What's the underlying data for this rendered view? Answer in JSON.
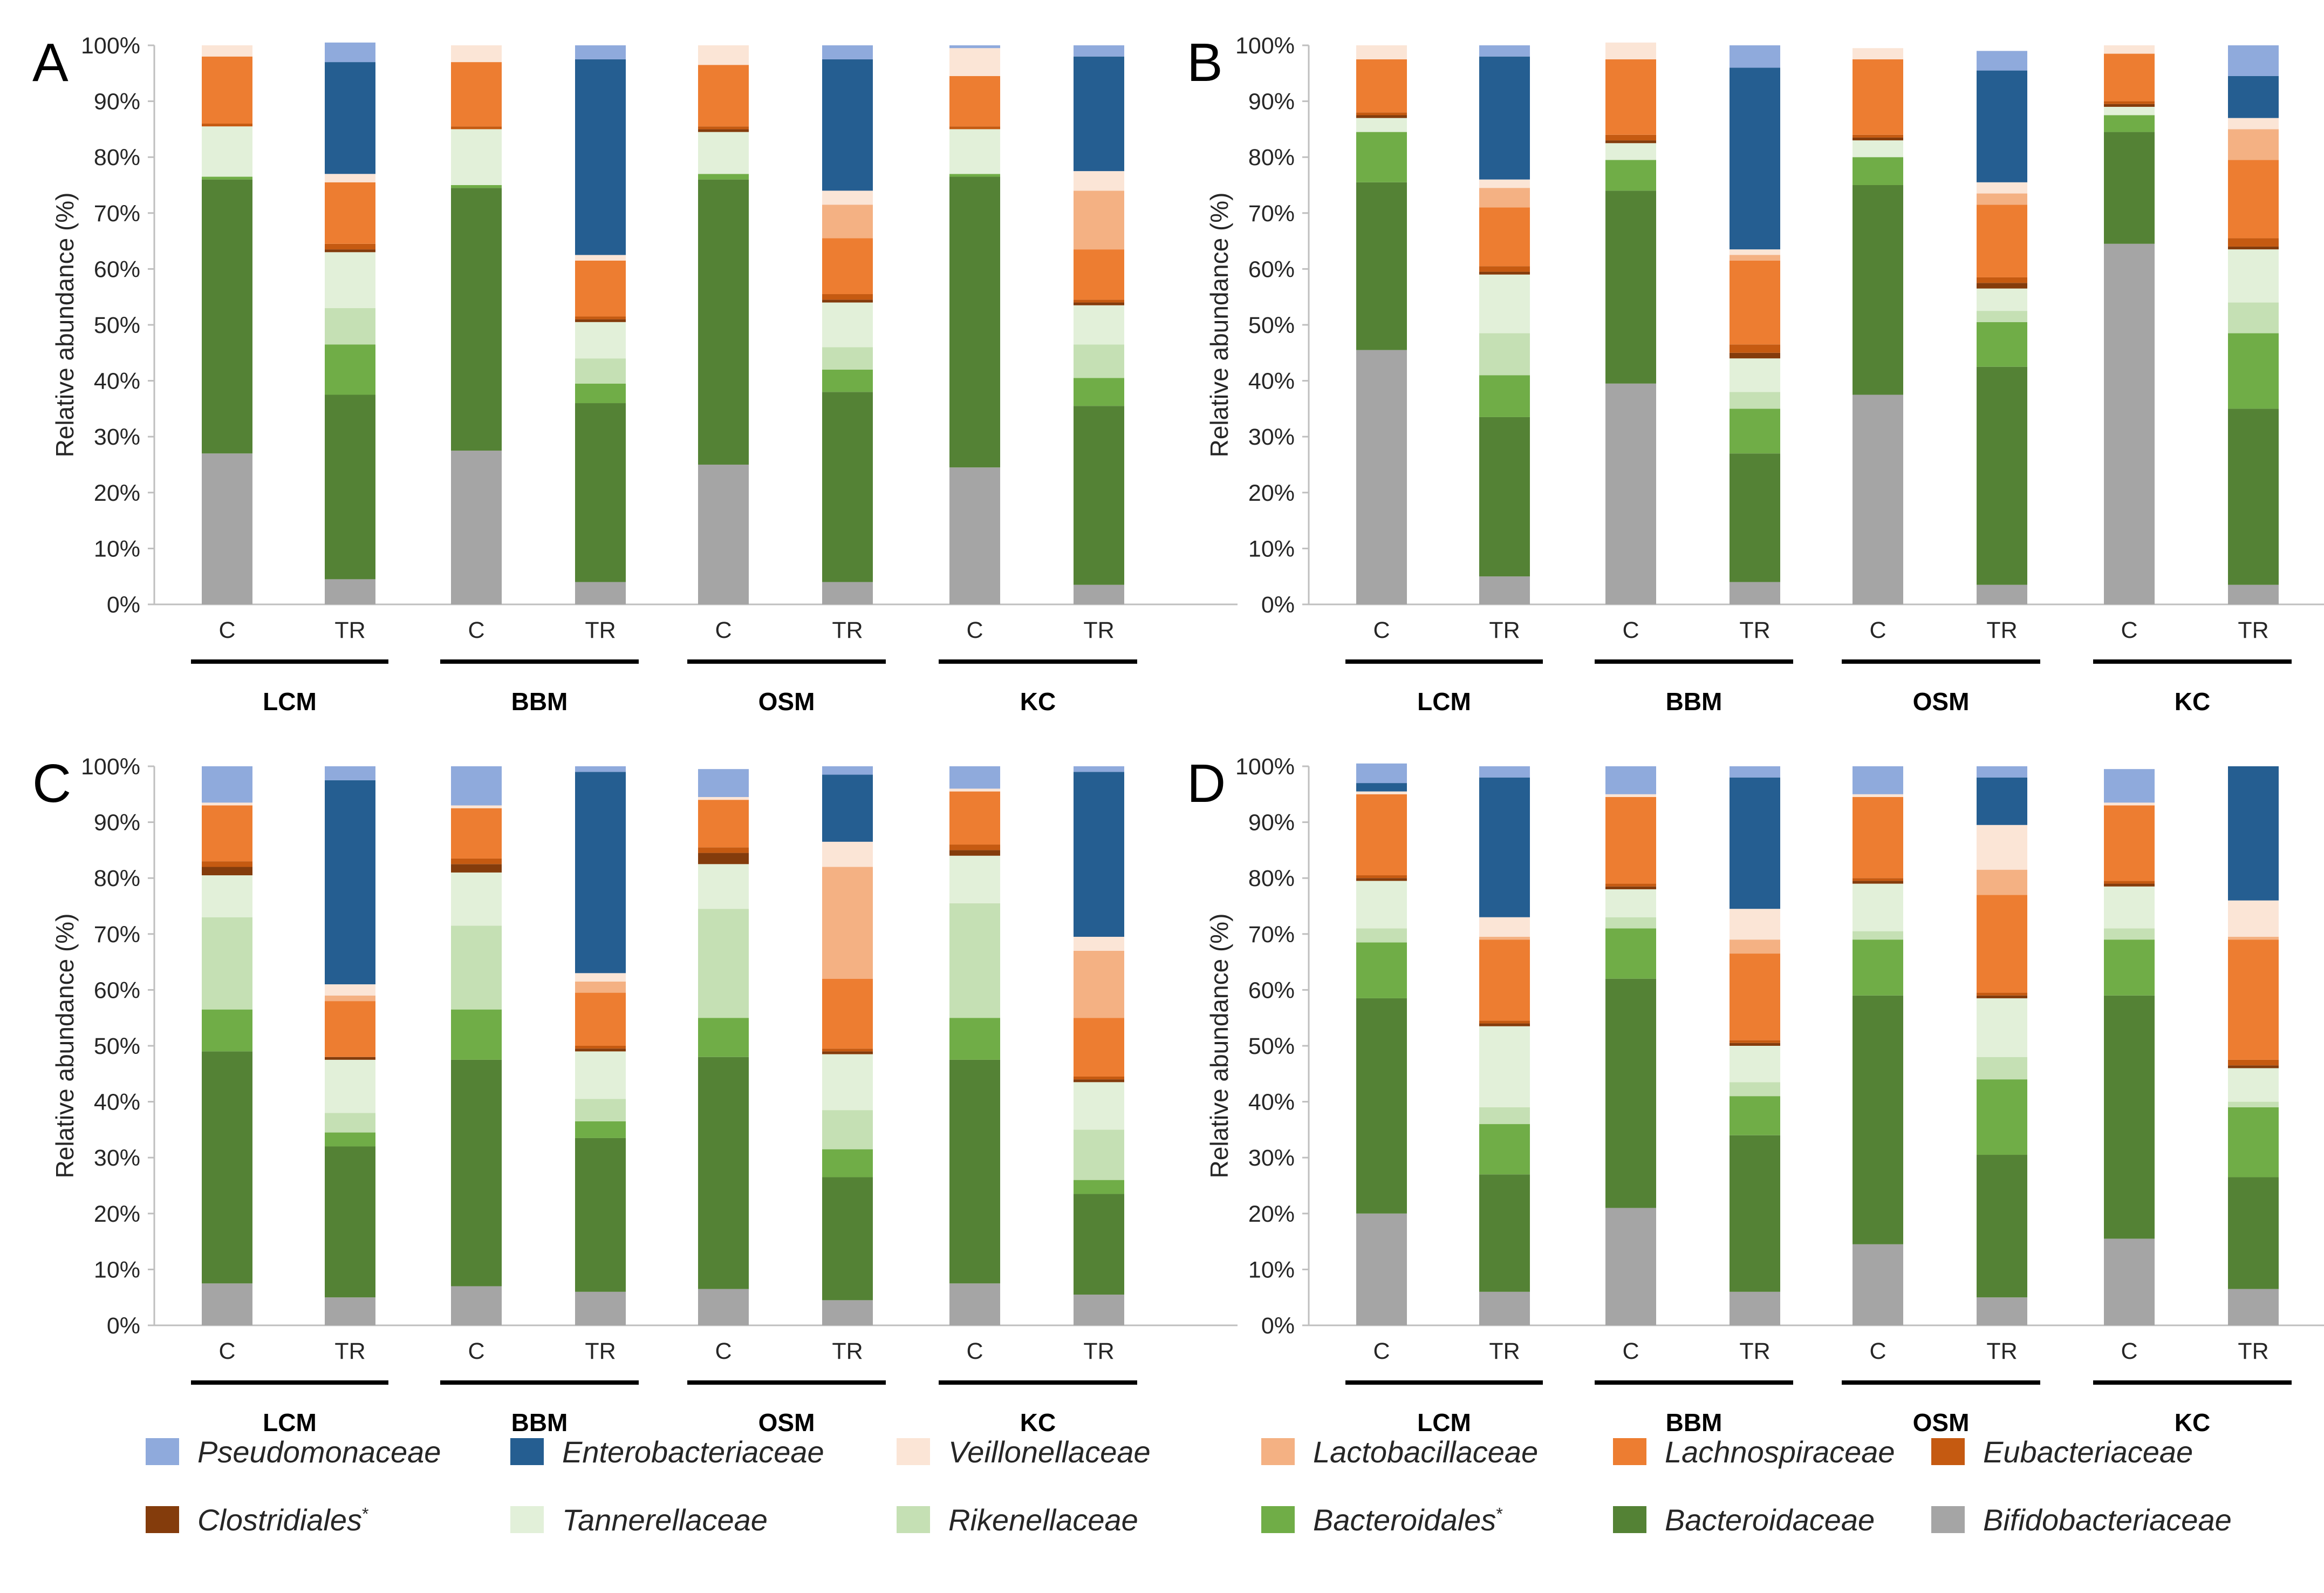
{
  "figure": {
    "ytick_labels": [
      "0%",
      "10%",
      "20%",
      "30%",
      "40%",
      "50%",
      "60%",
      "70%",
      "80%",
      "90%",
      "100%"
    ],
    "ylabel": "Relative abundance (%)",
    "groups": [
      "LCM",
      "BBM",
      "OSM",
      "KC"
    ],
    "conditions": [
      "C",
      "TR"
    ],
    "families": [
      "Bifidobacteriaceae",
      "Bacteroidaceae",
      "Bacteroidales",
      "Rikenellaceae",
      "Tannerellaceae",
      "Clostridiales",
      "Eubacteriaceae",
      "Lachnospiraceae",
      "Lactobacillaceae",
      "Veillonellaceae",
      "Enterobacteriaceae",
      "Pseudomonaceae"
    ],
    "colors": [
      "#a5a5a5",
      "#548235",
      "#70ad47",
      "#c5e0b4",
      "#e2f0d9",
      "#843c0c",
      "#c55a11",
      "#ed7d31",
      "#f4b183",
      "#fbe5d6",
      "#255e91",
      "#8faadc"
    ]
  },
  "legend": [
    {
      "label": "Pseudomonaceae",
      "color": "#8faadc",
      "asterisk": ""
    },
    {
      "label": "Enterobacteriaceae",
      "color": "#255e91",
      "asterisk": ""
    },
    {
      "label": "Veillonellaceae",
      "color": "#fbe5d6",
      "asterisk": ""
    },
    {
      "label": "Lactobacillaceae",
      "color": "#f4b183",
      "asterisk": ""
    },
    {
      "label": "Lachnospiraceae",
      "color": "#ed7d31",
      "asterisk": ""
    },
    {
      "label": "Eubacteriaceae",
      "color": "#c55a11",
      "asterisk": ""
    },
    {
      "label": "Clostridiales",
      "color": "#843c0c",
      "asterisk": "*"
    },
    {
      "label": "Tannerellaceae",
      "color": "#e2f0d9",
      "asterisk": ""
    },
    {
      "label": "Rikenellaceae",
      "color": "#c5e0b4",
      "asterisk": ""
    },
    {
      "label": "Bacteroidales",
      "color": "#70ad47",
      "asterisk": "*"
    },
    {
      "label": "Bacteroidaceae",
      "color": "#548235",
      "asterisk": ""
    },
    {
      "label": "Bifidobacteriaceae",
      "color": "#a5a5a5",
      "asterisk": ""
    }
  ],
  "chart_data": [
    {
      "type": "bar",
      "stacked": true,
      "panel": "A",
      "ylabel": "Relative abundance (%)",
      "ylim": [
        0,
        100
      ],
      "categories": [
        "C",
        "TR",
        "C",
        "TR",
        "C",
        "TR",
        "C",
        "TR"
      ],
      "groups": [
        "LCM",
        "BBM",
        "OSM",
        "KC"
      ],
      "bars": [
        [
          27,
          49,
          0.5,
          0,
          9,
          0,
          0.5,
          12,
          0,
          2,
          0,
          0
        ],
        [
          4.5,
          33,
          9,
          6.5,
          10,
          0.5,
          1,
          11,
          0,
          1.5,
          20,
          3.5
        ],
        [
          27.5,
          47,
          0.5,
          0,
          10,
          0,
          0.5,
          11.5,
          0,
          3,
          0,
          0
        ],
        [
          4,
          32,
          3.5,
          4.5,
          6.5,
          0.5,
          0.5,
          10,
          0,
          1,
          35,
          2.5
        ],
        [
          25,
          51,
          1,
          0,
          7.5,
          0.5,
          0.5,
          11,
          0,
          3.5,
          0,
          0
        ],
        [
          4,
          34,
          4,
          4,
          8,
          0.5,
          1,
          10,
          6,
          2.5,
          23.5,
          2.5
        ],
        [
          24.5,
          52,
          0.5,
          0,
          8,
          0,
          0.5,
          9,
          0,
          5,
          0,
          0.5
        ],
        [
          3.5,
          32,
          5,
          6,
          7,
          0.5,
          0.5,
          9,
          10.5,
          3.5,
          20.5,
          2
        ]
      ]
    },
    {
      "type": "bar",
      "stacked": true,
      "panel": "B",
      "ylabel": "Relative abundance (%)",
      "ylim": [
        0,
        100
      ],
      "categories": [
        "C",
        "TR",
        "C",
        "TR",
        "C",
        "TR",
        "C",
        "TR"
      ],
      "groups": [
        "LCM",
        "BBM",
        "OSM",
        "KC"
      ],
      "bars": [
        [
          45.5,
          30,
          9,
          0,
          2.5,
          0.5,
          0.5,
          9.5,
          0,
          2.5,
          0,
          0
        ],
        [
          5,
          28.5,
          7.5,
          7.5,
          10.5,
          0.5,
          1,
          10.5,
          3.5,
          1.5,
          22,
          2
        ],
        [
          39.5,
          34.5,
          5.5,
          0,
          3,
          0.5,
          1,
          13.5,
          0,
          3,
          0,
          0
        ],
        [
          4,
          23,
          8,
          3,
          6,
          1,
          1.5,
          15,
          1,
          1,
          32.5,
          4
        ],
        [
          37.5,
          37.5,
          5,
          0,
          3,
          0.5,
          0.5,
          13.5,
          0,
          2,
          0,
          0
        ],
        [
          3.5,
          39,
          8,
          2,
          4,
          1,
          1,
          13,
          2,
          2,
          20,
          3.5
        ],
        [
          64.5,
          20,
          3,
          0,
          1.5,
          0.5,
          0.5,
          8.5,
          0,
          1.5,
          0,
          0
        ],
        [
          3.5,
          31.5,
          13.5,
          5.5,
          9.5,
          0.5,
          1.5,
          14,
          5.5,
          2,
          7.5,
          5.5
        ]
      ]
    },
    {
      "type": "bar",
      "stacked": true,
      "panel": "C",
      "ylabel": "Relative abundance (%)",
      "ylim": [
        0,
        100
      ],
      "categories": [
        "C",
        "TR",
        "C",
        "TR",
        "C",
        "TR",
        "C",
        "TR"
      ],
      "groups": [
        "LCM",
        "BBM",
        "OSM",
        "KC"
      ],
      "bars": [
        [
          7.5,
          41.5,
          7.5,
          16.5,
          7.5,
          1.5,
          1,
          10,
          0,
          0.5,
          0,
          6.5
        ],
        [
          5,
          27,
          2.5,
          3.5,
          9.5,
          0.5,
          0,
          10,
          1,
          2,
          36.5,
          2.5
        ],
        [
          7,
          40.5,
          9,
          15,
          9.5,
          1.5,
          1,
          9,
          0,
          0.5,
          0,
          7
        ],
        [
          6,
          27.5,
          3,
          4,
          8.5,
          0.5,
          0.5,
          9.5,
          2,
          1.5,
          36,
          1
        ],
        [
          6.5,
          41.5,
          7,
          19.5,
          8,
          2,
          1,
          8.5,
          0,
          0.5,
          0,
          5
        ],
        [
          4.5,
          22,
          5,
          7,
          10,
          0.5,
          0.5,
          12.5,
          20,
          4.5,
          12,
          1.5
        ],
        [
          7.5,
          40,
          7.5,
          20.5,
          8.5,
          1,
          1,
          9.5,
          0,
          0.5,
          0,
          4
        ],
        [
          5.5,
          18,
          2.5,
          9,
          8.5,
          0.5,
          0.5,
          10.5,
          12,
          2.5,
          29.5,
          1
        ]
      ]
    },
    {
      "type": "bar",
      "stacked": true,
      "panel": "D",
      "ylabel": "Relative abundance (%)",
      "ylim": [
        0,
        100
      ],
      "categories": [
        "C",
        "TR",
        "C",
        "TR",
        "C",
        "TR",
        "C",
        "TR"
      ],
      "groups": [
        "LCM",
        "BBM",
        "OSM",
        "KC"
      ],
      "bars": [
        [
          20,
          38.5,
          10,
          2.5,
          8.5,
          0.5,
          0.5,
          14.5,
          0,
          0.5,
          1.5,
          3.5
        ],
        [
          6,
          21,
          9,
          3,
          14.5,
          0.5,
          0.5,
          14.5,
          0.5,
          3.5,
          25,
          2
        ],
        [
          21,
          41,
          9,
          2,
          5,
          0.5,
          0.5,
          15.5,
          0,
          0.5,
          0,
          5
        ],
        [
          6,
          28,
          7,
          2.5,
          6.5,
          0.5,
          0.5,
          15.5,
          2.5,
          5.5,
          23.5,
          2
        ],
        [
          14.5,
          44.5,
          10,
          1.5,
          8.5,
          0.5,
          0.5,
          14.5,
          0,
          0.5,
          0,
          5
        ],
        [
          5,
          25.5,
          13.5,
          4,
          10.5,
          0.5,
          0.5,
          17.5,
          4.5,
          8,
          8.5,
          2
        ],
        [
          15.5,
          43.5,
          10,
          2,
          7.5,
          0.5,
          0.5,
          13.5,
          0,
          0.5,
          0,
          6
        ],
        [
          6.5,
          20,
          12.5,
          1,
          6,
          0.5,
          1,
          21.5,
          0.5,
          6.5,
          24,
          0
        ]
      ]
    }
  ]
}
